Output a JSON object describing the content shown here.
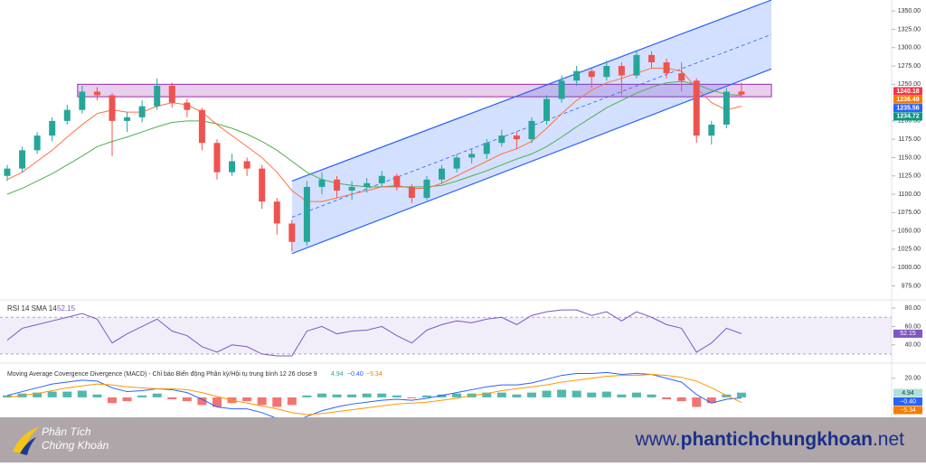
{
  "chart_data": {
    "type": "candlestick",
    "open": [
      1125,
      1135,
      1160,
      1180,
      1200,
      1215,
      1240,
      1235,
      1200,
      1205,
      1220,
      1248,
      1225,
      1215,
      1170,
      1130,
      1145,
      1135,
      1090,
      1060,
      1035,
      1110,
      1120,
      1105,
      1110,
      1115,
      1125,
      1110,
      1095,
      1120,
      1135,
      1150,
      1155,
      1170,
      1180,
      1175,
      1200,
      1230,
      1255,
      1268,
      1260,
      1275,
      1262,
      1290,
      1280,
      1265,
      1255,
      1180,
      1195,
      1240
    ],
    "high": [
      1140,
      1165,
      1185,
      1205,
      1222,
      1248,
      1246,
      1238,
      1212,
      1228,
      1258,
      1252,
      1230,
      1218,
      1175,
      1155,
      1150,
      1140,
      1095,
      1065,
      1118,
      1130,
      1125,
      1118,
      1122,
      1132,
      1128,
      1114,
      1125,
      1140,
      1155,
      1162,
      1175,
      1188,
      1185,
      1205,
      1235,
      1262,
      1275,
      1272,
      1282,
      1280,
      1296,
      1295,
      1285,
      1280,
      1258,
      1200,
      1245,
      1252
    ],
    "low": [
      1118,
      1130,
      1155,
      1172,
      1195,
      1210,
      1228,
      1152,
      1185,
      1198,
      1215,
      1218,
      1205,
      1160,
      1120,
      1125,
      1125,
      1080,
      1045,
      1022,
      1030,
      1100,
      1095,
      1092,
      1102,
      1110,
      1105,
      1088,
      1092,
      1115,
      1130,
      1142,
      1148,
      1165,
      1162,
      1170,
      1195,
      1225,
      1248,
      1245,
      1255,
      1235,
      1258,
      1272,
      1258,
      1240,
      1170,
      1168,
      1190,
      1232
    ],
    "close": [
      1135,
      1160,
      1180,
      1200,
      1215,
      1240,
      1235,
      1200,
      1205,
      1220,
      1248,
      1225,
      1215,
      1170,
      1130,
      1145,
      1135,
      1090,
      1060,
      1035,
      1110,
      1120,
      1105,
      1110,
      1115,
      1125,
      1110,
      1095,
      1120,
      1135,
      1150,
      1155,
      1170,
      1180,
      1175,
      1200,
      1230,
      1255,
      1268,
      1260,
      1275,
      1262,
      1290,
      1280,
      1265,
      1255,
      1180,
      1195,
      1240,
      1236
    ],
    "ma_fast": [
      1120,
      1130,
      1145,
      1160,
      1178,
      1195,
      1210,
      1215,
      1212,
      1212,
      1220,
      1225,
      1222,
      1212,
      1195,
      1180,
      1165,
      1150,
      1130,
      1105,
      1090,
      1090,
      1095,
      1100,
      1105,
      1110,
      1112,
      1108,
      1108,
      1115,
      1125,
      1135,
      1145,
      1155,
      1162,
      1172,
      1190,
      1210,
      1228,
      1242,
      1252,
      1258,
      1265,
      1272,
      1272,
      1268,
      1245,
      1225,
      1215,
      1220
    ],
    "ma_slow": [
      1100,
      1108,
      1118,
      1128,
      1140,
      1152,
      1165,
      1172,
      1178,
      1185,
      1192,
      1198,
      1200,
      1200,
      1196,
      1190,
      1182,
      1172,
      1160,
      1145,
      1130,
      1120,
      1115,
      1112,
      1110,
      1110,
      1110,
      1110,
      1110,
      1112,
      1118,
      1125,
      1132,
      1140,
      1148,
      1155,
      1165,
      1178,
      1192,
      1205,
      1218,
      1228,
      1238,
      1246,
      1252,
      1254,
      1250,
      1242,
      1236,
      1235
    ],
    "up_color": "#26a69a",
    "down_color": "#ef5350",
    "ylim": [
      962,
      1365
    ],
    "yticks": [
      {
        "value": 1350,
        "label": "1350.00"
      },
      {
        "value": 1325,
        "label": "1325.00"
      },
      {
        "value": 1300,
        "label": "1300.00"
      },
      {
        "value": 1275,
        "label": "1275.00"
      },
      {
        "value": 1250,
        "label": "1250.00"
      },
      {
        "value": 1200,
        "label": "1200.00"
      },
      {
        "value": 1175,
        "label": "1175.00"
      },
      {
        "value": 1150,
        "label": "1150.00"
      },
      {
        "value": 1125,
        "label": "1125.00"
      },
      {
        "value": 1100,
        "label": "1100.00"
      },
      {
        "value": 1075,
        "label": "1075.00"
      },
      {
        "value": 1050,
        "label": "1050.00"
      },
      {
        "value": 1025,
        "label": "1025.00"
      },
      {
        "value": 1000,
        "label": "1000.00"
      },
      {
        "value": 975,
        "label": "975.00"
      }
    ],
    "channel": {
      "x": [
        19,
        51
      ],
      "lower": [
        1019,
        1271
      ],
      "upper": [
        1118,
        1365
      ]
    },
    "zone": {
      "x": [
        5,
        51
      ],
      "range": [
        1233,
        1250
      ]
    },
    "price_tags": [
      {
        "value": 1240.18,
        "color": "#f23645"
      },
      {
        "value": 1236.49,
        "color": "#f57c00"
      },
      {
        "value": 1235.56,
        "color": "#2962ff"
      },
      {
        "value": 1234.72,
        "color": "#089981"
      }
    ],
    "rsi_title": "RSI 14 SMA 14",
    "rsi": [
      45,
      58,
      62,
      66,
      70,
      74,
      68,
      42,
      52,
      60,
      68,
      55,
      50,
      38,
      32,
      40,
      38,
      30,
      28,
      28,
      55,
      60,
      52,
      55,
      56,
      60,
      50,
      42,
      56,
      62,
      66,
      64,
      68,
      70,
      62,
      72,
      76,
      78,
      78,
      72,
      76,
      66,
      76,
      70,
      62,
      58,
      32,
      42,
      58,
      52.15
    ],
    "rsi_ylim": [
      25,
      85
    ],
    "rsi_band": [
      30,
      70
    ],
    "rsi_yticks": [
      {
        "value": 80,
        "label": "80.00"
      },
      {
        "value": 60,
        "label": "60.00"
      },
      {
        "value": 40,
        "label": "40.00"
      }
    ],
    "macd_title": "Moving Average Covergence Divergence (MACD) - Chỉ báo Biến động Phân kỳ/Hội tụ trung bình 12 26 close 9",
    "macd_hist": [
      2,
      4,
      5,
      6,
      6,
      7,
      3,
      -6,
      -4,
      2,
      4,
      -2,
      -4,
      -8,
      -10,
      -6,
      -4,
      -8,
      -10,
      -8,
      2,
      4,
      3,
      3,
      4,
      4,
      2,
      -1,
      2,
      3,
      4,
      4,
      5,
      5,
      3,
      5,
      7,
      8,
      7,
      5,
      6,
      3,
      5,
      3,
      -2,
      -4,
      -10,
      -6,
      3,
      4.94
    ],
    "macd": [
      2,
      6,
      10,
      14,
      16,
      18,
      17,
      10,
      6,
      7,
      9,
      8,
      5,
      -2,
      -10,
      -12,
      -12,
      -16,
      -22,
      -26,
      -20,
      -14,
      -10,
      -7,
      -5,
      -3,
      -2,
      -3,
      -1,
      2,
      5,
      8,
      11,
      13,
      13,
      15,
      19,
      23,
      25,
      25,
      26,
      24,
      25,
      24,
      20,
      16,
      3,
      -6,
      -2,
      -0.4
    ],
    "signal": [
      0,
      2,
      4,
      7,
      10,
      12,
      14,
      13,
      11,
      10,
      9,
      9,
      8,
      5,
      1,
      -3,
      -6,
      -9,
      -12,
      -16,
      -18,
      -17,
      -15,
      -13,
      -11,
      -9,
      -7,
      -6,
      -5,
      -3,
      -1,
      2,
      4,
      7,
      9,
      11,
      13,
      16,
      18,
      20,
      22,
      23,
      23,
      24,
      23,
      21,
      17,
      10,
      2,
      -5.34
    ],
    "macd_value_labels": [
      "4.94",
      "−0.40",
      "−5.34"
    ],
    "macd_ylim": [
      -19,
      33
    ],
    "macd_yticks": [
      {
        "value": 20,
        "label": "20.00"
      }
    ]
  },
  "footer": {
    "logo": [
      "Phân Tích",
      "Chứng Khoán"
    ],
    "url": [
      "www.",
      "phantichchungkhoan",
      ".net"
    ]
  }
}
